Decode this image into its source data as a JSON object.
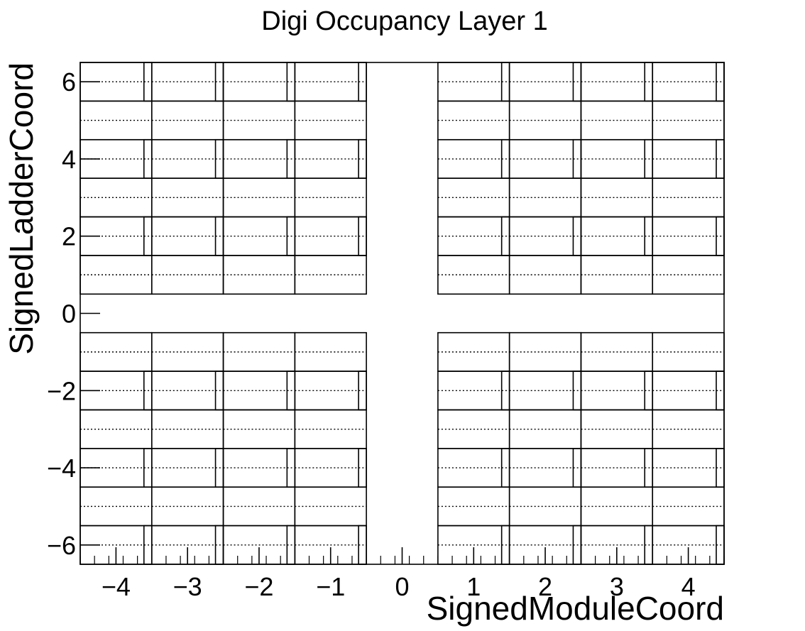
{
  "chart_data": {
    "type": "heatmap",
    "title": "Digi Occupancy Layer 1",
    "xlabel": "SignedModuleCoord",
    "ylabel": "SignedLadderCoord",
    "xlim": [
      -4.5,
      4.5
    ],
    "ylim": [
      -6.5,
      6.5
    ],
    "xticks": [
      -4,
      -3,
      -2,
      -1,
      0,
      1,
      2,
      3,
      4
    ],
    "yticks": [
      -6,
      -4,
      -2,
      0,
      2,
      4,
      6
    ],
    "xtick_labels": [
      "−4",
      "−3",
      "−2",
      "−1",
      "0",
      "1",
      "2",
      "3",
      "4"
    ],
    "ytick_labels": [
      "−6",
      "−4",
      "−2",
      "0",
      "2",
      "4",
      "6"
    ],
    "modules": [
      -4,
      -3,
      -2,
      -1,
      1,
      2,
      3,
      4
    ],
    "ladders": [
      -6,
      -5,
      -4,
      -3,
      -2,
      -1,
      1,
      2,
      3,
      4,
      5,
      6
    ],
    "half_ladder_mark": "dotted line at ladder centre, full ladders with bracket boxes on right edge at half positions",
    "grid": false,
    "legend": "none",
    "colors": {
      "frame": "#000000",
      "background": "#ffffff"
    }
  }
}
